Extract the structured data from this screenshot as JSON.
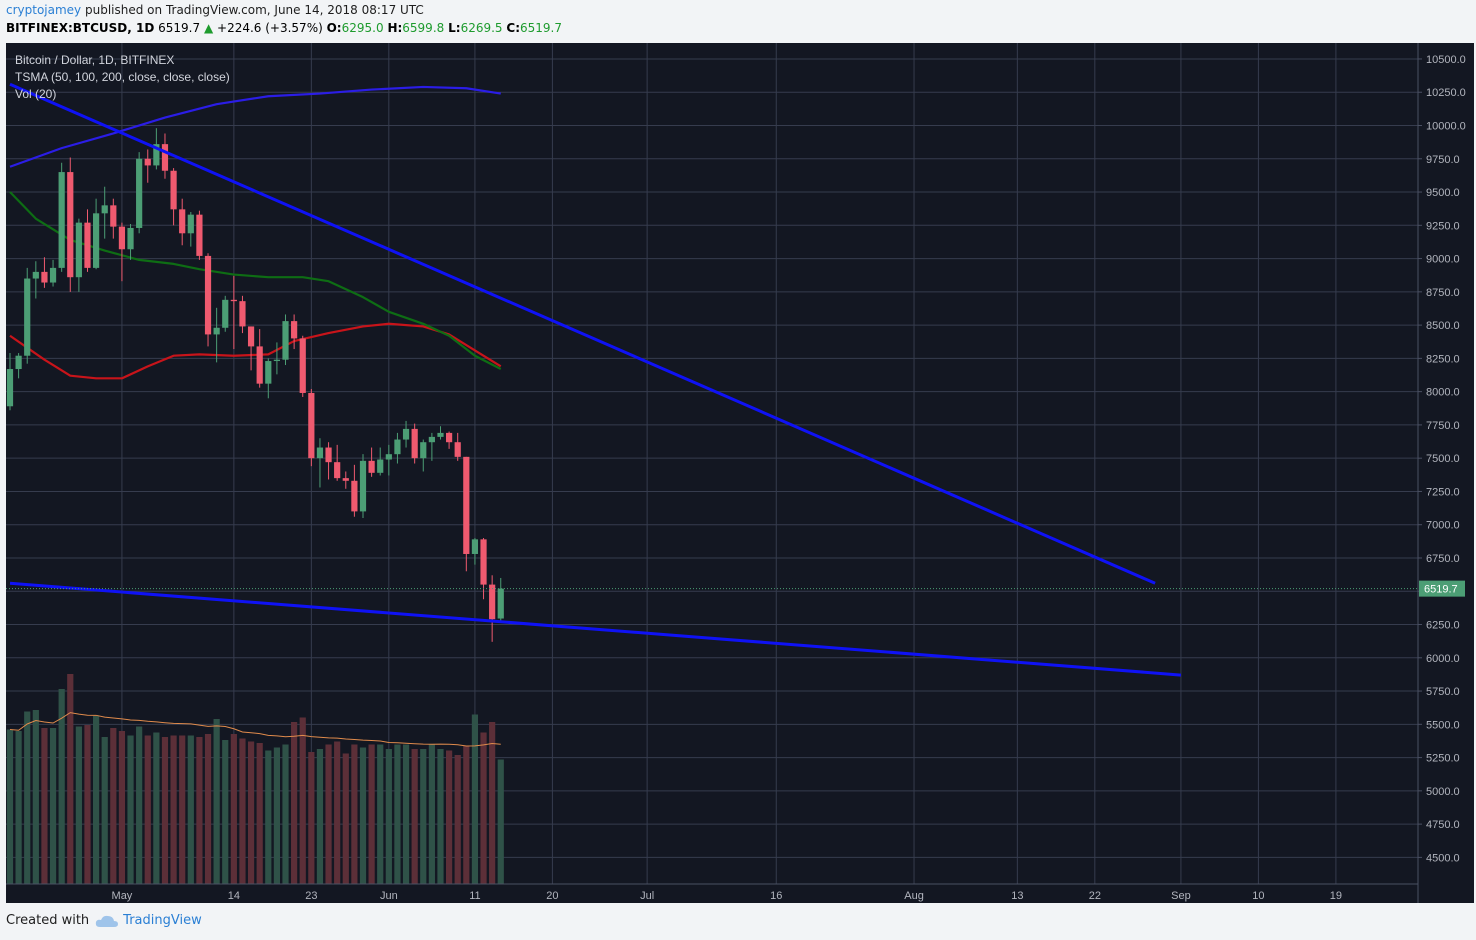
{
  "header": {
    "author": "cryptojamey",
    "published_text": "published on TradingView.com, June 14, 2018 08:17 UTC",
    "symbol": "BITFINEX:BTCUSD, 1D",
    "last": "6519.7",
    "up_arrow": "▲",
    "change": "+224.6 (+3.57%)",
    "open_label": "O:",
    "open": "6295.0",
    "high_label": "H:",
    "high": "6599.8",
    "low_label": "L:",
    "low": "6269.5",
    "close_label": "C:",
    "close": "6519.7"
  },
  "legend": {
    "line1": "Bitcoin / Dollar, 1D, BITFINEX",
    "line2": "TSMA (50, 100, 200, close, close, close)",
    "line3": "Vol (20)"
  },
  "price_label": "6519.7",
  "footer": {
    "created": "Created with",
    "brand": "TradingView"
  },
  "colors": {
    "background": "#131722",
    "grid": "#363c4e",
    "up": "#4c9e75",
    "down": "#ef5a6f",
    "sma50": "#c8141a",
    "sma100": "#0e6d14",
    "sma200": "#2b1de6",
    "trend": "#0f12f5",
    "vol_ma": "#e08b4c",
    "vol_up": "#2f5248",
    "vol_down": "#5c2f38",
    "axis_text": "#b2b5be"
  },
  "chart_data": {
    "type": "candlestick",
    "title": "Bitcoin / Dollar, 1D, BITFINEX",
    "y_ticks": [
      4500,
      4750,
      5000,
      5250,
      5500,
      5750,
      6000,
      6250,
      6500,
      6750,
      7000,
      7250,
      7500,
      7750,
      8000,
      8250,
      8500,
      8750,
      9000,
      9250,
      9500,
      9750,
      10000,
      10250,
      10500
    ],
    "y_tick_labels": [
      "4500.0",
      "4750.0",
      "5000.0",
      "5250.0",
      "5500.0",
      "5750.0",
      "6000.0",
      "6250.0",
      "6500.0",
      "6750.0",
      "7000.0",
      "7250.0",
      "7500.0",
      "7750.0",
      "8000.0",
      "8250.0",
      "8500.0",
      "8750.0",
      "9000.0",
      "9250.0",
      "9500.0",
      "9750.0",
      "10000.0",
      "10250.0",
      "10500.0"
    ],
    "ylim": [
      4300,
      10620
    ],
    "x_ticks": [
      {
        "label": "May",
        "date": "2018-05-01"
      },
      {
        "label": "14",
        "date": "2018-05-14"
      },
      {
        "label": "23",
        "date": "2018-05-23"
      },
      {
        "label": "Jun",
        "date": "2018-06-01"
      },
      {
        "label": "11",
        "date": "2018-06-11"
      },
      {
        "label": "20",
        "date": "2018-06-20"
      },
      {
        "label": "Jul",
        "date": "2018-07-01"
      },
      {
        "label": "16",
        "date": "2018-07-16"
      },
      {
        "label": "Aug",
        "date": "2018-08-01"
      },
      {
        "label": "13",
        "date": "2018-08-13"
      },
      {
        "label": "22",
        "date": "2018-08-22"
      },
      {
        "label": "Sep",
        "date": "2018-09-01"
      },
      {
        "label": "10",
        "date": "2018-09-10"
      },
      {
        "label": "19",
        "date": "2018-09-19"
      }
    ],
    "xlim": [
      "2018-04-18",
      "2018-09-29"
    ],
    "candles": [
      {
        "date": "2018-04-18",
        "o": 7890,
        "h": 8290,
        "l": 7860,
        "c": 8170
      },
      {
        "date": "2018-04-19",
        "o": 8170,
        "h": 8290,
        "l": 8100,
        "c": 8270
      },
      {
        "date": "2018-04-20",
        "o": 8270,
        "h": 8930,
        "l": 8210,
        "c": 8850
      },
      {
        "date": "2018-04-21",
        "o": 8850,
        "h": 8980,
        "l": 8700,
        "c": 8900
      },
      {
        "date": "2018-04-22",
        "o": 8900,
        "h": 9010,
        "l": 8780,
        "c": 8820
      },
      {
        "date": "2018-04-23",
        "o": 8820,
        "h": 8990,
        "l": 8790,
        "c": 8930
      },
      {
        "date": "2018-04-24",
        "o": 8930,
        "h": 9720,
        "l": 8900,
        "c": 9650
      },
      {
        "date": "2018-04-25",
        "o": 9650,
        "h": 9760,
        "l": 8750,
        "c": 8860
      },
      {
        "date": "2018-04-26",
        "o": 8860,
        "h": 9300,
        "l": 8750,
        "c": 9270
      },
      {
        "date": "2018-04-27",
        "o": 9270,
        "h": 9370,
        "l": 8900,
        "c": 8930
      },
      {
        "date": "2018-04-28",
        "o": 8930,
        "h": 9450,
        "l": 8920,
        "c": 9340
      },
      {
        "date": "2018-04-29",
        "o": 9340,
        "h": 9540,
        "l": 9150,
        "c": 9400
      },
      {
        "date": "2018-04-30",
        "o": 9400,
        "h": 9450,
        "l": 9150,
        "c": 9240
      },
      {
        "date": "2018-05-01",
        "o": 9240,
        "h": 9270,
        "l": 8830,
        "c": 9070
      },
      {
        "date": "2018-05-02",
        "o": 9070,
        "h": 9260,
        "l": 8990,
        "c": 9230
      },
      {
        "date": "2018-05-03",
        "o": 9230,
        "h": 9800,
        "l": 9190,
        "c": 9750
      },
      {
        "date": "2018-05-04",
        "o": 9750,
        "h": 9820,
        "l": 9570,
        "c": 9700
      },
      {
        "date": "2018-05-05",
        "o": 9700,
        "h": 9980,
        "l": 9670,
        "c": 9860
      },
      {
        "date": "2018-05-06",
        "o": 9860,
        "h": 9940,
        "l": 9600,
        "c": 9660
      },
      {
        "date": "2018-05-07",
        "o": 9660,
        "h": 9680,
        "l": 9250,
        "c": 9370
      },
      {
        "date": "2018-05-08",
        "o": 9370,
        "h": 9450,
        "l": 9100,
        "c": 9190
      },
      {
        "date": "2018-05-09",
        "o": 9190,
        "h": 9350,
        "l": 9090,
        "c": 9330
      },
      {
        "date": "2018-05-10",
        "o": 9330,
        "h": 9360,
        "l": 8990,
        "c": 9020
      },
      {
        "date": "2018-05-11",
        "o": 9020,
        "h": 9040,
        "l": 8340,
        "c": 8430
      },
      {
        "date": "2018-05-12",
        "o": 8430,
        "h": 8630,
        "l": 8220,
        "c": 8480
      },
      {
        "date": "2018-05-13",
        "o": 8480,
        "h": 8720,
        "l": 8450,
        "c": 8690
      },
      {
        "date": "2018-05-14",
        "o": 8690,
        "h": 8870,
        "l": 8320,
        "c": 8680
      },
      {
        "date": "2018-05-15",
        "o": 8680,
        "h": 8720,
        "l": 8440,
        "c": 8490
      },
      {
        "date": "2018-05-16",
        "o": 8490,
        "h": 8490,
        "l": 8160,
        "c": 8340
      },
      {
        "date": "2018-05-17",
        "o": 8340,
        "h": 8470,
        "l": 8030,
        "c": 8060
      },
      {
        "date": "2018-05-18",
        "o": 8060,
        "h": 8250,
        "l": 7950,
        "c": 8230
      },
      {
        "date": "2018-05-19",
        "o": 8230,
        "h": 8370,
        "l": 8130,
        "c": 8240
      },
      {
        "date": "2018-05-20",
        "o": 8240,
        "h": 8580,
        "l": 8200,
        "c": 8530
      },
      {
        "date": "2018-05-21",
        "o": 8530,
        "h": 8580,
        "l": 8320,
        "c": 8400
      },
      {
        "date": "2018-05-22",
        "o": 8400,
        "h": 8420,
        "l": 7960,
        "c": 7990
      },
      {
        "date": "2018-05-23",
        "o": 7990,
        "h": 8020,
        "l": 7440,
        "c": 7500
      },
      {
        "date": "2018-05-24",
        "o": 7500,
        "h": 7650,
        "l": 7280,
        "c": 7580
      },
      {
        "date": "2018-05-25",
        "o": 7580,
        "h": 7620,
        "l": 7340,
        "c": 7470
      },
      {
        "date": "2018-05-26",
        "o": 7470,
        "h": 7600,
        "l": 7330,
        "c": 7350
      },
      {
        "date": "2018-05-27",
        "o": 7350,
        "h": 7400,
        "l": 7270,
        "c": 7330
      },
      {
        "date": "2018-05-28",
        "o": 7330,
        "h": 7450,
        "l": 7060,
        "c": 7100
      },
      {
        "date": "2018-05-29",
        "o": 7100,
        "h": 7530,
        "l": 7050,
        "c": 7480
      },
      {
        "date": "2018-05-30",
        "o": 7480,
        "h": 7580,
        "l": 7360,
        "c": 7390
      },
      {
        "date": "2018-05-31",
        "o": 7390,
        "h": 7580,
        "l": 7370,
        "c": 7490
      },
      {
        "date": "2018-06-01",
        "o": 7490,
        "h": 7600,
        "l": 7370,
        "c": 7530
      },
      {
        "date": "2018-06-02",
        "o": 7530,
        "h": 7690,
        "l": 7460,
        "c": 7640
      },
      {
        "date": "2018-06-03",
        "o": 7640,
        "h": 7780,
        "l": 7580,
        "c": 7720
      },
      {
        "date": "2018-06-04",
        "o": 7720,
        "h": 7760,
        "l": 7460,
        "c": 7500
      },
      {
        "date": "2018-06-05",
        "o": 7500,
        "h": 7640,
        "l": 7400,
        "c": 7620
      },
      {
        "date": "2018-06-06",
        "o": 7620,
        "h": 7690,
        "l": 7480,
        "c": 7660
      },
      {
        "date": "2018-06-07",
        "o": 7660,
        "h": 7740,
        "l": 7640,
        "c": 7690
      },
      {
        "date": "2018-06-08",
        "o": 7690,
        "h": 7700,
        "l": 7570,
        "c": 7620
      },
      {
        "date": "2018-06-09",
        "o": 7620,
        "h": 7690,
        "l": 7480,
        "c": 7510
      },
      {
        "date": "2018-06-10",
        "o": 7510,
        "h": 7510,
        "l": 6650,
        "c": 6780
      },
      {
        "date": "2018-06-11",
        "o": 6780,
        "h": 6900,
        "l": 6700,
        "c": 6890
      },
      {
        "date": "2018-06-12",
        "o": 6890,
        "h": 6900,
        "l": 6440,
        "c": 6550
      },
      {
        "date": "2018-06-13",
        "o": 6550,
        "h": 6620,
        "l": 6120,
        "c": 6290
      },
      {
        "date": "2018-06-14",
        "o": 6295,
        "h": 6599.8,
        "l": 6269.5,
        "c": 6519.7
      }
    ],
    "volume": [
      1030,
      1020,
      1150,
      1160,
      1040,
      1040,
      1300,
      1400,
      1050,
      1060,
      1120,
      980,
      1040,
      1020,
      990,
      1050,
      990,
      1010,
      980,
      990,
      990,
      990,
      980,
      1000,
      1100,
      960,
      1000,
      970,
      950,
      940,
      890,
      910,
      930,
      1080,
      1110,
      880,
      900,
      930,
      950,
      870,
      930,
      910,
      930,
      930,
      900,
      930,
      930,
      900,
      900,
      930,
      900,
      890,
      860,
      920,
      1130,
      1010,
      1080,
      830
    ],
    "series": [
      {
        "name": "SMA 50",
        "color": "#c8141a",
        "points": [
          [
            "2018-04-18",
            8420
          ],
          [
            "2018-04-22",
            8240
          ],
          [
            "2018-04-25",
            8120
          ],
          [
            "2018-04-28",
            8100
          ],
          [
            "2018-05-01",
            8100
          ],
          [
            "2018-05-04",
            8190
          ],
          [
            "2018-05-07",
            8270
          ],
          [
            "2018-05-10",
            8280
          ],
          [
            "2018-05-14",
            8270
          ],
          [
            "2018-05-18",
            8280
          ],
          [
            "2018-05-21",
            8380
          ],
          [
            "2018-05-25",
            8440
          ],
          [
            "2018-05-29",
            8490
          ],
          [
            "2018-06-01",
            8510
          ],
          [
            "2018-06-05",
            8490
          ],
          [
            "2018-06-08",
            8430
          ],
          [
            "2018-06-11",
            8310
          ],
          [
            "2018-06-14",
            8190
          ]
        ]
      },
      {
        "name": "SMA 100",
        "color": "#0e6d14",
        "points": [
          [
            "2018-04-18",
            9500
          ],
          [
            "2018-04-21",
            9300
          ],
          [
            "2018-04-25",
            9140
          ],
          [
            "2018-04-29",
            9060
          ],
          [
            "2018-05-03",
            8990
          ],
          [
            "2018-05-07",
            8960
          ],
          [
            "2018-05-10",
            8920
          ],
          [
            "2018-05-14",
            8880
          ],
          [
            "2018-05-18",
            8860
          ],
          [
            "2018-05-22",
            8860
          ],
          [
            "2018-05-25",
            8830
          ],
          [
            "2018-05-29",
            8710
          ],
          [
            "2018-06-01",
            8600
          ],
          [
            "2018-06-05",
            8510
          ],
          [
            "2018-06-08",
            8420
          ],
          [
            "2018-06-11",
            8270
          ],
          [
            "2018-06-14",
            8170
          ]
        ]
      },
      {
        "name": "SMA 200",
        "color": "#2b1de6",
        "points": [
          [
            "2018-04-18",
            9690
          ],
          [
            "2018-04-24",
            9830
          ],
          [
            "2018-04-30",
            9940
          ],
          [
            "2018-05-06",
            10060
          ],
          [
            "2018-05-12",
            10160
          ],
          [
            "2018-05-18",
            10220
          ],
          [
            "2018-05-24",
            10240
          ],
          [
            "2018-05-30",
            10270
          ],
          [
            "2018-06-05",
            10290
          ],
          [
            "2018-06-10",
            10280
          ],
          [
            "2018-06-14",
            10240
          ]
        ]
      }
    ],
    "trendlines": [
      {
        "from": [
          "2018-04-18",
          10310
        ],
        "to": [
          "2018-08-29",
          6560
        ]
      },
      {
        "from": [
          "2018-04-18",
          6560
        ],
        "to": [
          "2018-09-01",
          5870
        ]
      }
    ],
    "last_price": 6519.7
  }
}
